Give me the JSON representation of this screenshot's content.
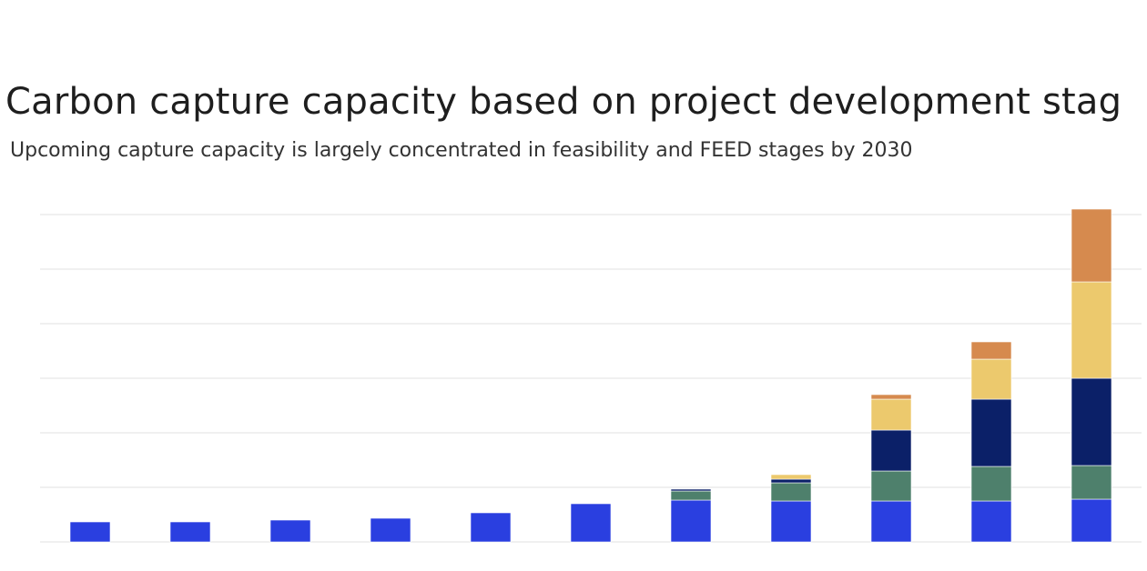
{
  "page": {
    "title": "Carbon capture capacity based on project development stag",
    "subtitle": "Upcoming capture capacity is largely concentrated in feasibility and FEED stages by 2030"
  },
  "chart_data": {
    "type": "bar",
    "stacked": true,
    "title": "Carbon capture capacity based on project development stag",
    "subtitle": "Upcoming capture capacity is largely concentrated in feasibility and FEED stages by 2030",
    "categories": [
      "",
      "",
      "",
      "",
      "",
      "",
      "",
      "",
      "",
      "",
      ""
    ],
    "grid": true,
    "series": [
      {
        "color": "#2a3fe0",
        "values": [
          22,
          22,
          24,
          26,
          32,
          42,
          46,
          45,
          45,
          45,
          47
        ]
      },
      {
        "color": "#4e806c",
        "values": [
          0,
          0,
          0,
          0,
          0,
          0,
          10,
          20,
          33,
          38,
          37
        ]
      },
      {
        "color": "#0b2068",
        "values": [
          0,
          0,
          0,
          0,
          0,
          0,
          2,
          4,
          45,
          74,
          96
        ]
      },
      {
        "color": "#ecc96d",
        "values": [
          0,
          0,
          0,
          0,
          0,
          0,
          0,
          5,
          34,
          44,
          106
        ]
      },
      {
        "color": "#d68a4e",
        "values": [
          0,
          0,
          0,
          0,
          0,
          0,
          0,
          0,
          5,
          19,
          80
        ]
      }
    ]
  }
}
